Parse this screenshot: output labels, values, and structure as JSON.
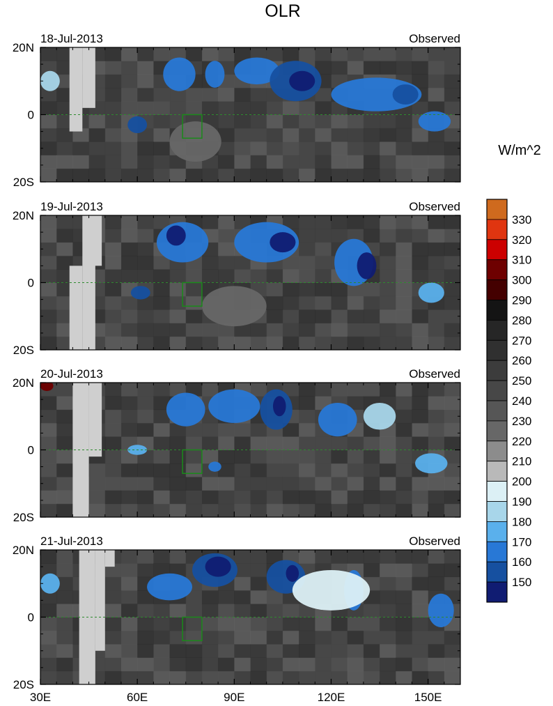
{
  "title": "OLR",
  "units": "W/m^2",
  "chart_data": {
    "type": "heatmap",
    "title": "OLR",
    "colorbar_label": "W/m^2",
    "x_axis": {
      "range": [
        30,
        160
      ],
      "unit": "degrees longitude",
      "ticks": [
        30,
        60,
        90,
        120,
        150
      ],
      "tick_labels": [
        "30E",
        "60E",
        "90E",
        "120E",
        "150E"
      ],
      "minor_tick_step": 5
    },
    "y_axis": {
      "range": [
        -20,
        20
      ],
      "unit": "degrees latitude",
      "ticks": [
        20,
        0,
        -20
      ],
      "tick_labels": [
        "20N",
        "0",
        "20S"
      ]
    },
    "color_levels": {
      "labels": [
        "330",
        "320",
        "310",
        "300",
        "290",
        "280",
        "270",
        "260",
        "250",
        "240",
        "230",
        "220",
        "210",
        "200",
        "190",
        "180",
        "170",
        "160",
        "150"
      ],
      "colors": [
        "#cf6a1e",
        "#e03510",
        "#cc0000",
        "#6e0000",
        "#440000",
        "#141414",
        "#262626",
        "#303030",
        "#3c3c3c",
        "#474747",
        "#565656",
        "#676767",
        "#8c8c8c",
        "#b9b9b9",
        "#dcf0f5",
        "#a8d6ea",
        "#5ab0ec",
        "#2878d6",
        "#1650a0",
        "#101c72"
      ]
    },
    "observed_box": {
      "lon": [
        74,
        80
      ],
      "lat": [
        -7,
        0
      ]
    },
    "panels": [
      {
        "date": "18-Jul-2013",
        "label": "Observed",
        "missing": [
          [
            39,
            43,
            -5,
            20
          ],
          [
            43,
            47,
            2,
            20
          ]
        ],
        "features": [
          {
            "lon": 73,
            "lat": 12,
            "rx": 5,
            "ry": 5,
            "level": 17
          },
          {
            "lon": 84,
            "lat": 12,
            "rx": 3,
            "ry": 4,
            "level": 17
          },
          {
            "lon": 97,
            "lat": 13,
            "rx": 7,
            "ry": 4,
            "level": 17
          },
          {
            "lon": 109,
            "lat": 10,
            "rx": 8,
            "ry": 6,
            "level": 18
          },
          {
            "lon": 111,
            "lat": 10,
            "rx": 4,
            "ry": 3,
            "level": 19
          },
          {
            "lon": 60,
            "lat": -3,
            "rx": 3,
            "ry": 2.5,
            "level": 18
          },
          {
            "lon": 134,
            "lat": 6,
            "rx": 14,
            "ry": 5,
            "level": 17
          },
          {
            "lon": 143,
            "lat": 6,
            "rx": 4,
            "ry": 3,
            "level": 18
          },
          {
            "lon": 152,
            "lat": -2,
            "rx": 5,
            "ry": 3,
            "level": 17
          },
          {
            "lon": 33,
            "lat": 10,
            "rx": 3,
            "ry": 3,
            "level": 15
          },
          {
            "lon": 78,
            "lat": -8,
            "rx": 8,
            "ry": 6,
            "level": 11
          }
        ]
      },
      {
        "date": "19-Jul-2013",
        "label": "Observed",
        "missing": [
          [
            39,
            43,
            -20,
            5
          ],
          [
            43,
            47,
            -20,
            20
          ],
          [
            45,
            49,
            5,
            20
          ]
        ],
        "features": [
          {
            "lon": 74,
            "lat": 12,
            "rx": 8,
            "ry": 6,
            "level": 17
          },
          {
            "lon": 72,
            "lat": 14,
            "rx": 3,
            "ry": 3,
            "level": 19
          },
          {
            "lon": 100,
            "lat": 12,
            "rx": 10,
            "ry": 6,
            "level": 17
          },
          {
            "lon": 105,
            "lat": 12,
            "rx": 4,
            "ry": 3,
            "level": 19
          },
          {
            "lon": 127,
            "lat": 6,
            "rx": 6,
            "ry": 7,
            "level": 17
          },
          {
            "lon": 131,
            "lat": 5,
            "rx": 3,
            "ry": 4,
            "level": 19
          },
          {
            "lon": 61,
            "lat": -3,
            "rx": 3,
            "ry": 2,
            "level": 18
          },
          {
            "lon": 151,
            "lat": -3,
            "rx": 4,
            "ry": 3,
            "level": 16
          },
          {
            "lon": 90,
            "lat": -7,
            "rx": 10,
            "ry": 6,
            "level": 11
          }
        ]
      },
      {
        "date": "20-Jul-2013",
        "label": "Observed",
        "missing": [
          [
            40,
            45,
            -20,
            20
          ],
          [
            45,
            49,
            -2,
            20
          ]
        ],
        "features": [
          {
            "lon": 75,
            "lat": 12,
            "rx": 6,
            "ry": 5,
            "level": 17
          },
          {
            "lon": 90,
            "lat": 13,
            "rx": 8,
            "ry": 5,
            "level": 17
          },
          {
            "lon": 103,
            "lat": 12,
            "rx": 5,
            "ry": 6,
            "level": 18
          },
          {
            "lon": 104,
            "lat": 13,
            "rx": 2,
            "ry": 3,
            "level": 19
          },
          {
            "lon": 122,
            "lat": 9,
            "rx": 6,
            "ry": 5,
            "level": 17
          },
          {
            "lon": 135,
            "lat": 10,
            "rx": 5,
            "ry": 4,
            "level": 15
          },
          {
            "lon": 151,
            "lat": -4,
            "rx": 5,
            "ry": 3,
            "level": 16
          },
          {
            "lon": 84,
            "lat": -5,
            "rx": 2,
            "ry": 1.5,
            "level": 17
          },
          {
            "lon": 60,
            "lat": 0,
            "rx": 3,
            "ry": 1.5,
            "level": 16
          },
          {
            "lon": 32,
            "lat": 19,
            "rx": 2,
            "ry": 1.5,
            "level": 3
          }
        ]
      },
      {
        "date": "21-Jul-2013",
        "label": "Observed",
        "missing": [
          [
            42,
            47,
            -20,
            20
          ],
          [
            47,
            50,
            -10,
            20
          ],
          [
            50,
            53,
            15,
            20
          ]
        ],
        "features": [
          {
            "lon": 84,
            "lat": 14,
            "rx": 7,
            "ry": 5,
            "level": 18
          },
          {
            "lon": 85,
            "lat": 15,
            "rx": 4,
            "ry": 3,
            "level": 19
          },
          {
            "lon": 70,
            "lat": 9,
            "rx": 7,
            "ry": 4,
            "level": 17
          },
          {
            "lon": 106,
            "lat": 12,
            "rx": 6,
            "ry": 5,
            "level": 18
          },
          {
            "lon": 108,
            "lat": 13,
            "rx": 2,
            "ry": 2.5,
            "level": 19
          },
          {
            "lon": 127,
            "lat": 8,
            "rx": 3,
            "ry": 6,
            "level": 17
          },
          {
            "lon": 154,
            "lat": 2,
            "rx": 4,
            "ry": 5,
            "level": 17
          },
          {
            "lon": 33,
            "lat": 10,
            "rx": 3,
            "ry": 3,
            "level": 16
          },
          {
            "lon": 120,
            "lat": 8,
            "rx": 12,
            "ry": 6,
            "level": 14
          }
        ]
      }
    ]
  }
}
